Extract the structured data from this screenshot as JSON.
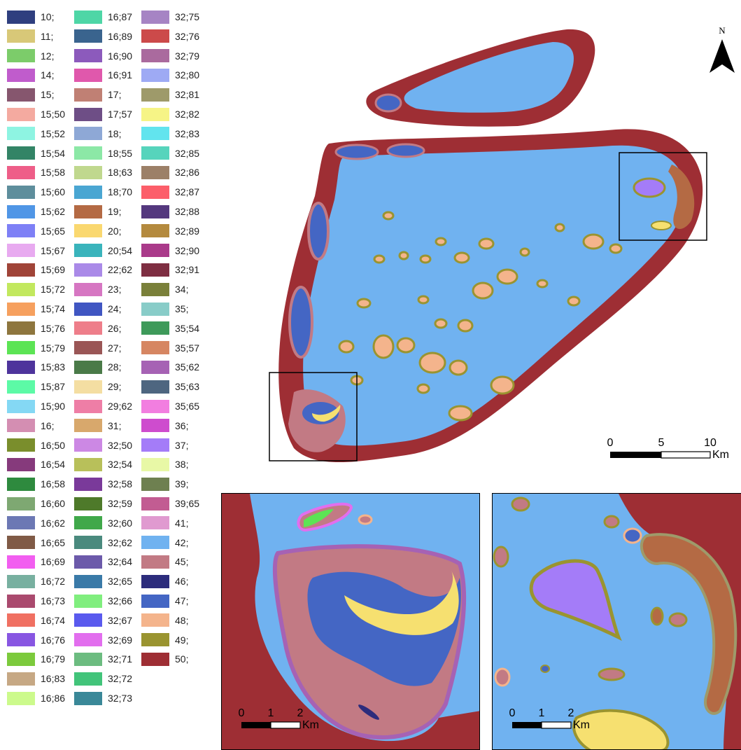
{
  "legend": {
    "columns": [
      [
        {
          "label": "10;",
          "color": "#2f3f7f"
        },
        {
          "label": "11;",
          "color": "#d8c878"
        },
        {
          "label": "12;",
          "color": "#7ccc6a"
        },
        {
          "label": "14;",
          "color": "#c05ccc"
        },
        {
          "label": "15;",
          "color": "#86566e"
        },
        {
          "label": "15;50",
          "color": "#f4aaa0"
        },
        {
          "label": "15;52",
          "color": "#8ef4e2"
        },
        {
          "label": "15;54",
          "color": "#338466"
        },
        {
          "label": "15;58",
          "color": "#ee5e88"
        },
        {
          "label": "15;60",
          "color": "#5e8e9c"
        },
        {
          "label": "15;62",
          "color": "#5096e6"
        },
        {
          "label": "15;65",
          "color": "#7e80f6"
        },
        {
          "label": "15;67",
          "color": "#e8aaf0"
        },
        {
          "label": "15;69",
          "color": "#a04438"
        },
        {
          "label": "15;72",
          "color": "#c2e85e"
        },
        {
          "label": "15;74",
          "color": "#f6a05e"
        },
        {
          "label": "15;76",
          "color": "#8e763e"
        },
        {
          "label": "15;79",
          "color": "#5ce454"
        },
        {
          "label": "15;83",
          "color": "#4e349c"
        },
        {
          "label": "15;87",
          "color": "#5cfaa6"
        },
        {
          "label": "15;90",
          "color": "#84d8f4"
        },
        {
          "label": "16;",
          "color": "#d48eb2"
        },
        {
          "label": "16;50",
          "color": "#7a8e2c"
        },
        {
          "label": "16;54",
          "color": "#863a7c"
        },
        {
          "label": "16;58",
          "color": "#2e8a3e"
        },
        {
          "label": "16;60",
          "color": "#7ea872"
        },
        {
          "label": "16;62",
          "color": "#6c78b4"
        },
        {
          "label": "16;65",
          "color": "#805a46"
        },
        {
          "label": "16;69",
          "color": "#f25ef0"
        },
        {
          "label": "16;72",
          "color": "#78b0a0"
        },
        {
          "label": "16;73",
          "color": "#aa4a6e"
        },
        {
          "label": "16;74",
          "color": "#f07062"
        },
        {
          "label": "16;76",
          "color": "#8856e2"
        },
        {
          "label": "16;79",
          "color": "#7cca3c"
        },
        {
          "label": "16;83",
          "color": "#c6a884"
        },
        {
          "label": "16;86",
          "color": "#ccfa8c"
        }
      ],
      [
        {
          "label": "16;87",
          "color": "#4ed6a6"
        },
        {
          "label": "16;89",
          "color": "#3a648e"
        },
        {
          "label": "16;90",
          "color": "#8c5abc"
        },
        {
          "label": "16;91",
          "color": "#e058ac"
        },
        {
          "label": "17;",
          "color": "#c08074"
        },
        {
          "label": "17;57",
          "color": "#6e4e86"
        },
        {
          "label": "18;",
          "color": "#8ea8d6"
        },
        {
          "label": "18;55",
          "color": "#8ce8a6"
        },
        {
          "label": "18;63",
          "color": "#c0d88e"
        },
        {
          "label": "18;70",
          "color": "#4aa6d2"
        },
        {
          "label": "19;",
          "color": "#b46a44"
        },
        {
          "label": "20;",
          "color": "#fad870"
        },
        {
          "label": "20;54",
          "color": "#3ab4bc"
        },
        {
          "label": "22;62",
          "color": "#aa8ae8"
        },
        {
          "label": "23;",
          "color": "#d676c2"
        },
        {
          "label": "24;",
          "color": "#4056c2"
        },
        {
          "label": "26;",
          "color": "#ee7e8a"
        },
        {
          "label": "27;",
          "color": "#9a5656"
        },
        {
          "label": "28;",
          "color": "#4a7a48"
        },
        {
          "label": "29;",
          "color": "#f4dea2"
        },
        {
          "label": "29;62",
          "color": "#ee7ea6"
        },
        {
          "label": "31;",
          "color": "#d8a86c"
        },
        {
          "label": "32;50",
          "color": "#cc88e4"
        },
        {
          "label": "32;54",
          "color": "#b8c05a"
        },
        {
          "label": "32;58",
          "color": "#7a3a9a"
        },
        {
          "label": "32;59",
          "color": "#4e7a2a"
        },
        {
          "label": "32;60",
          "color": "#40a84a"
        },
        {
          "label": "32;62",
          "color": "#4a8a7e"
        },
        {
          "label": "32;64",
          "color": "#6c5aaa"
        },
        {
          "label": "32;65",
          "color": "#3a7aa8"
        },
        {
          "label": "32;66",
          "color": "#80ee7e"
        },
        {
          "label": "32;67",
          "color": "#5a5aee"
        },
        {
          "label": "32;69",
          "color": "#e26eee"
        },
        {
          "label": "32;71",
          "color": "#6cbc80"
        },
        {
          "label": "32;72",
          "color": "#42c47a"
        },
        {
          "label": "32;73",
          "color": "#3a8898"
        }
      ],
      [
        {
          "label": "32;75",
          "color": "#a684c4"
        },
        {
          "label": "32;76",
          "color": "#cc4a4a"
        },
        {
          "label": "32;79",
          "color": "#aa6a9e"
        },
        {
          "label": "32;80",
          "color": "#9eaaf4"
        },
        {
          "label": "32;81",
          "color": "#9e9a6a"
        },
        {
          "label": "32;82",
          "color": "#f6f486"
        },
        {
          "label": "32;83",
          "color": "#62e4ee"
        },
        {
          "label": "32;85",
          "color": "#56d4bc"
        },
        {
          "label": "32;86",
          "color": "#9c8068"
        },
        {
          "label": "32;87",
          "color": "#fc5e6a"
        },
        {
          "label": "32;88",
          "color": "#54387e"
        },
        {
          "label": "32;89",
          "color": "#b48a3e"
        },
        {
          "label": "32;90",
          "color": "#aa3a8a"
        },
        {
          "label": "32;91",
          "color": "#7e2e42"
        },
        {
          "label": "34;",
          "color": "#7a803a"
        },
        {
          "label": "35;",
          "color": "#88ccc8"
        },
        {
          "label": "35;54",
          "color": "#3e9a5a"
        },
        {
          "label": "35;57",
          "color": "#d68662"
        },
        {
          "label": "35;62",
          "color": "#a662b4"
        },
        {
          "label": "35;63",
          "color": "#4e6680"
        },
        {
          "label": "35;65",
          "color": "#f27ee0"
        },
        {
          "label": "36;",
          "color": "#ce4cce"
        },
        {
          "label": "37;",
          "color": "#a47cf8"
        },
        {
          "label": "38;",
          "color": "#e8f8a6"
        },
        {
          "label": "39;",
          "color": "#6e8050"
        },
        {
          "label": "39;65",
          "color": "#c25c92"
        },
        {
          "label": "41;",
          "color": "#e09ad0"
        },
        {
          "label": "42;",
          "color": "#70b2f0"
        },
        {
          "label": "45;",
          "color": "#c27a84"
        },
        {
          "label": "46;",
          "color": "#2c2c7c"
        },
        {
          "label": "47;",
          "color": "#4466c4"
        },
        {
          "label": "48;",
          "color": "#f4b48c"
        },
        {
          "label": "49;",
          "color": "#9a9430"
        },
        {
          "label": "50;",
          "color": "#9e2e34"
        }
      ]
    ]
  },
  "main_map": {
    "scale_bar": {
      "tick_0": "0",
      "tick_mid": "5",
      "tick_max": "10",
      "unit": "Km"
    },
    "north_arrow": {
      "label": "N"
    }
  },
  "inset_left": {
    "scale_bar": {
      "tick_0": "0",
      "tick_mid": "1",
      "tick_max": "2",
      "unit": "Km"
    }
  },
  "inset_right": {
    "scale_bar": {
      "tick_0": "0",
      "tick_mid": "1",
      "tick_max": "2",
      "unit": "Km"
    }
  },
  "colors": {
    "lagoon": "#70b2f0",
    "reef_rim": "#9e2e34",
    "reef_flat": "#c27a84",
    "sand": "#f4b48c",
    "seagrass": "#4466c4",
    "yellow_sand": "#f6e070",
    "purple_patch": "#a47cf8",
    "brown_patch": "#b46a44",
    "olive_ring": "#9a9430",
    "frame": "#000000"
  }
}
